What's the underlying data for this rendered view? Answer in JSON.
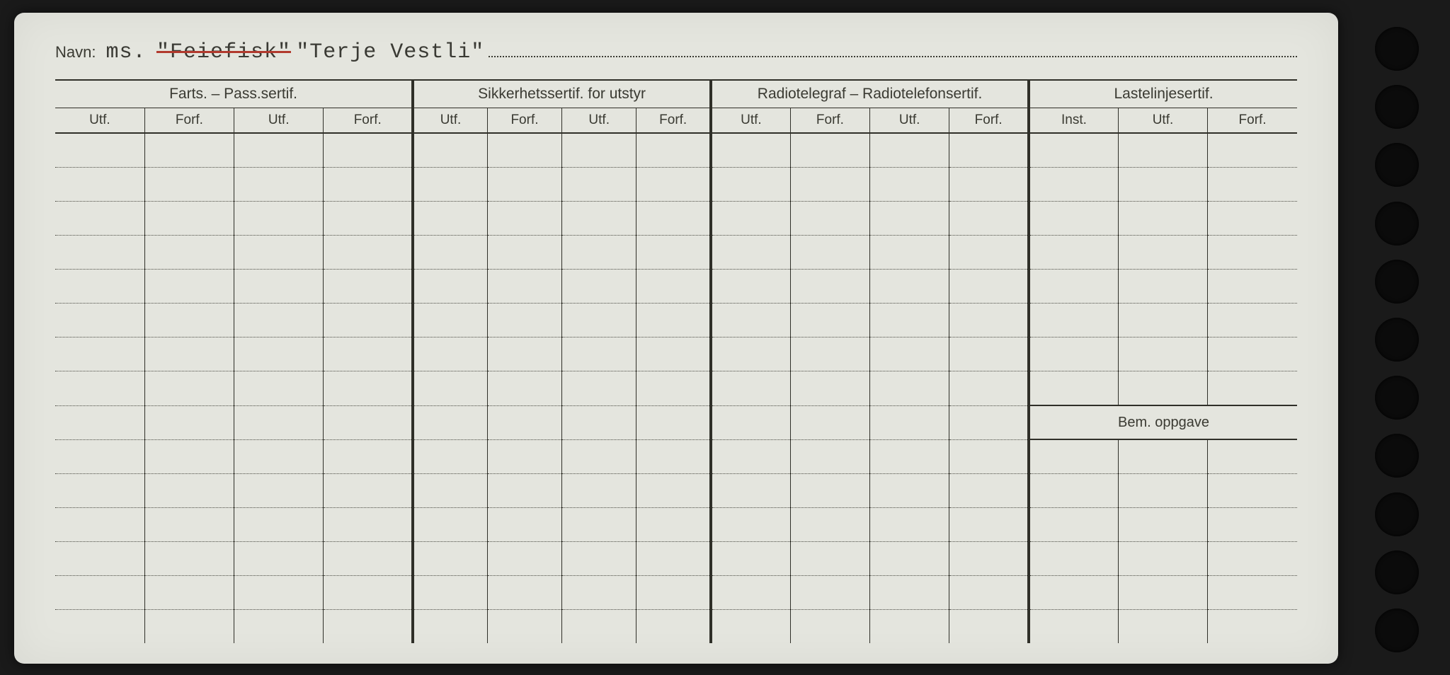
{
  "document": {
    "background_color": "#e4e5de",
    "text_color": "#3a3a32",
    "line_color": "#2f2f28",
    "dotted_color": "#4a4a42",
    "strike_color": "#b23a2e",
    "hole_color": "#0b0b0b",
    "hole_count": 11,
    "body_row_count": 15,
    "bem_section_start_row_index": 8
  },
  "title": {
    "label": "Navn:",
    "prefix": "ms.",
    "struck_name": "\"Feiefisk\"",
    "current_name": "\"Terje Vestli\""
  },
  "groups": [
    {
      "label": "Farts. – Pass.sertif.",
      "columns": [
        "Utf.",
        "Forf.",
        "Utf.",
        "Forf."
      ]
    },
    {
      "label": "Sikkerhetssertif. for utstyr",
      "columns": [
        "Utf.",
        "Forf.",
        "Utf.",
        "Forf."
      ]
    },
    {
      "label": "Radiotelegraf – Radiotelefonsertif.",
      "columns": [
        "Utf.",
        "Forf.",
        "Utf.",
        "Forf."
      ]
    },
    {
      "label": "Lastelinjesertif.",
      "columns": [
        "Inst.",
        "Utf.",
        "Forf."
      ]
    }
  ],
  "bem_section": {
    "label": "Bem. oppgave"
  }
}
